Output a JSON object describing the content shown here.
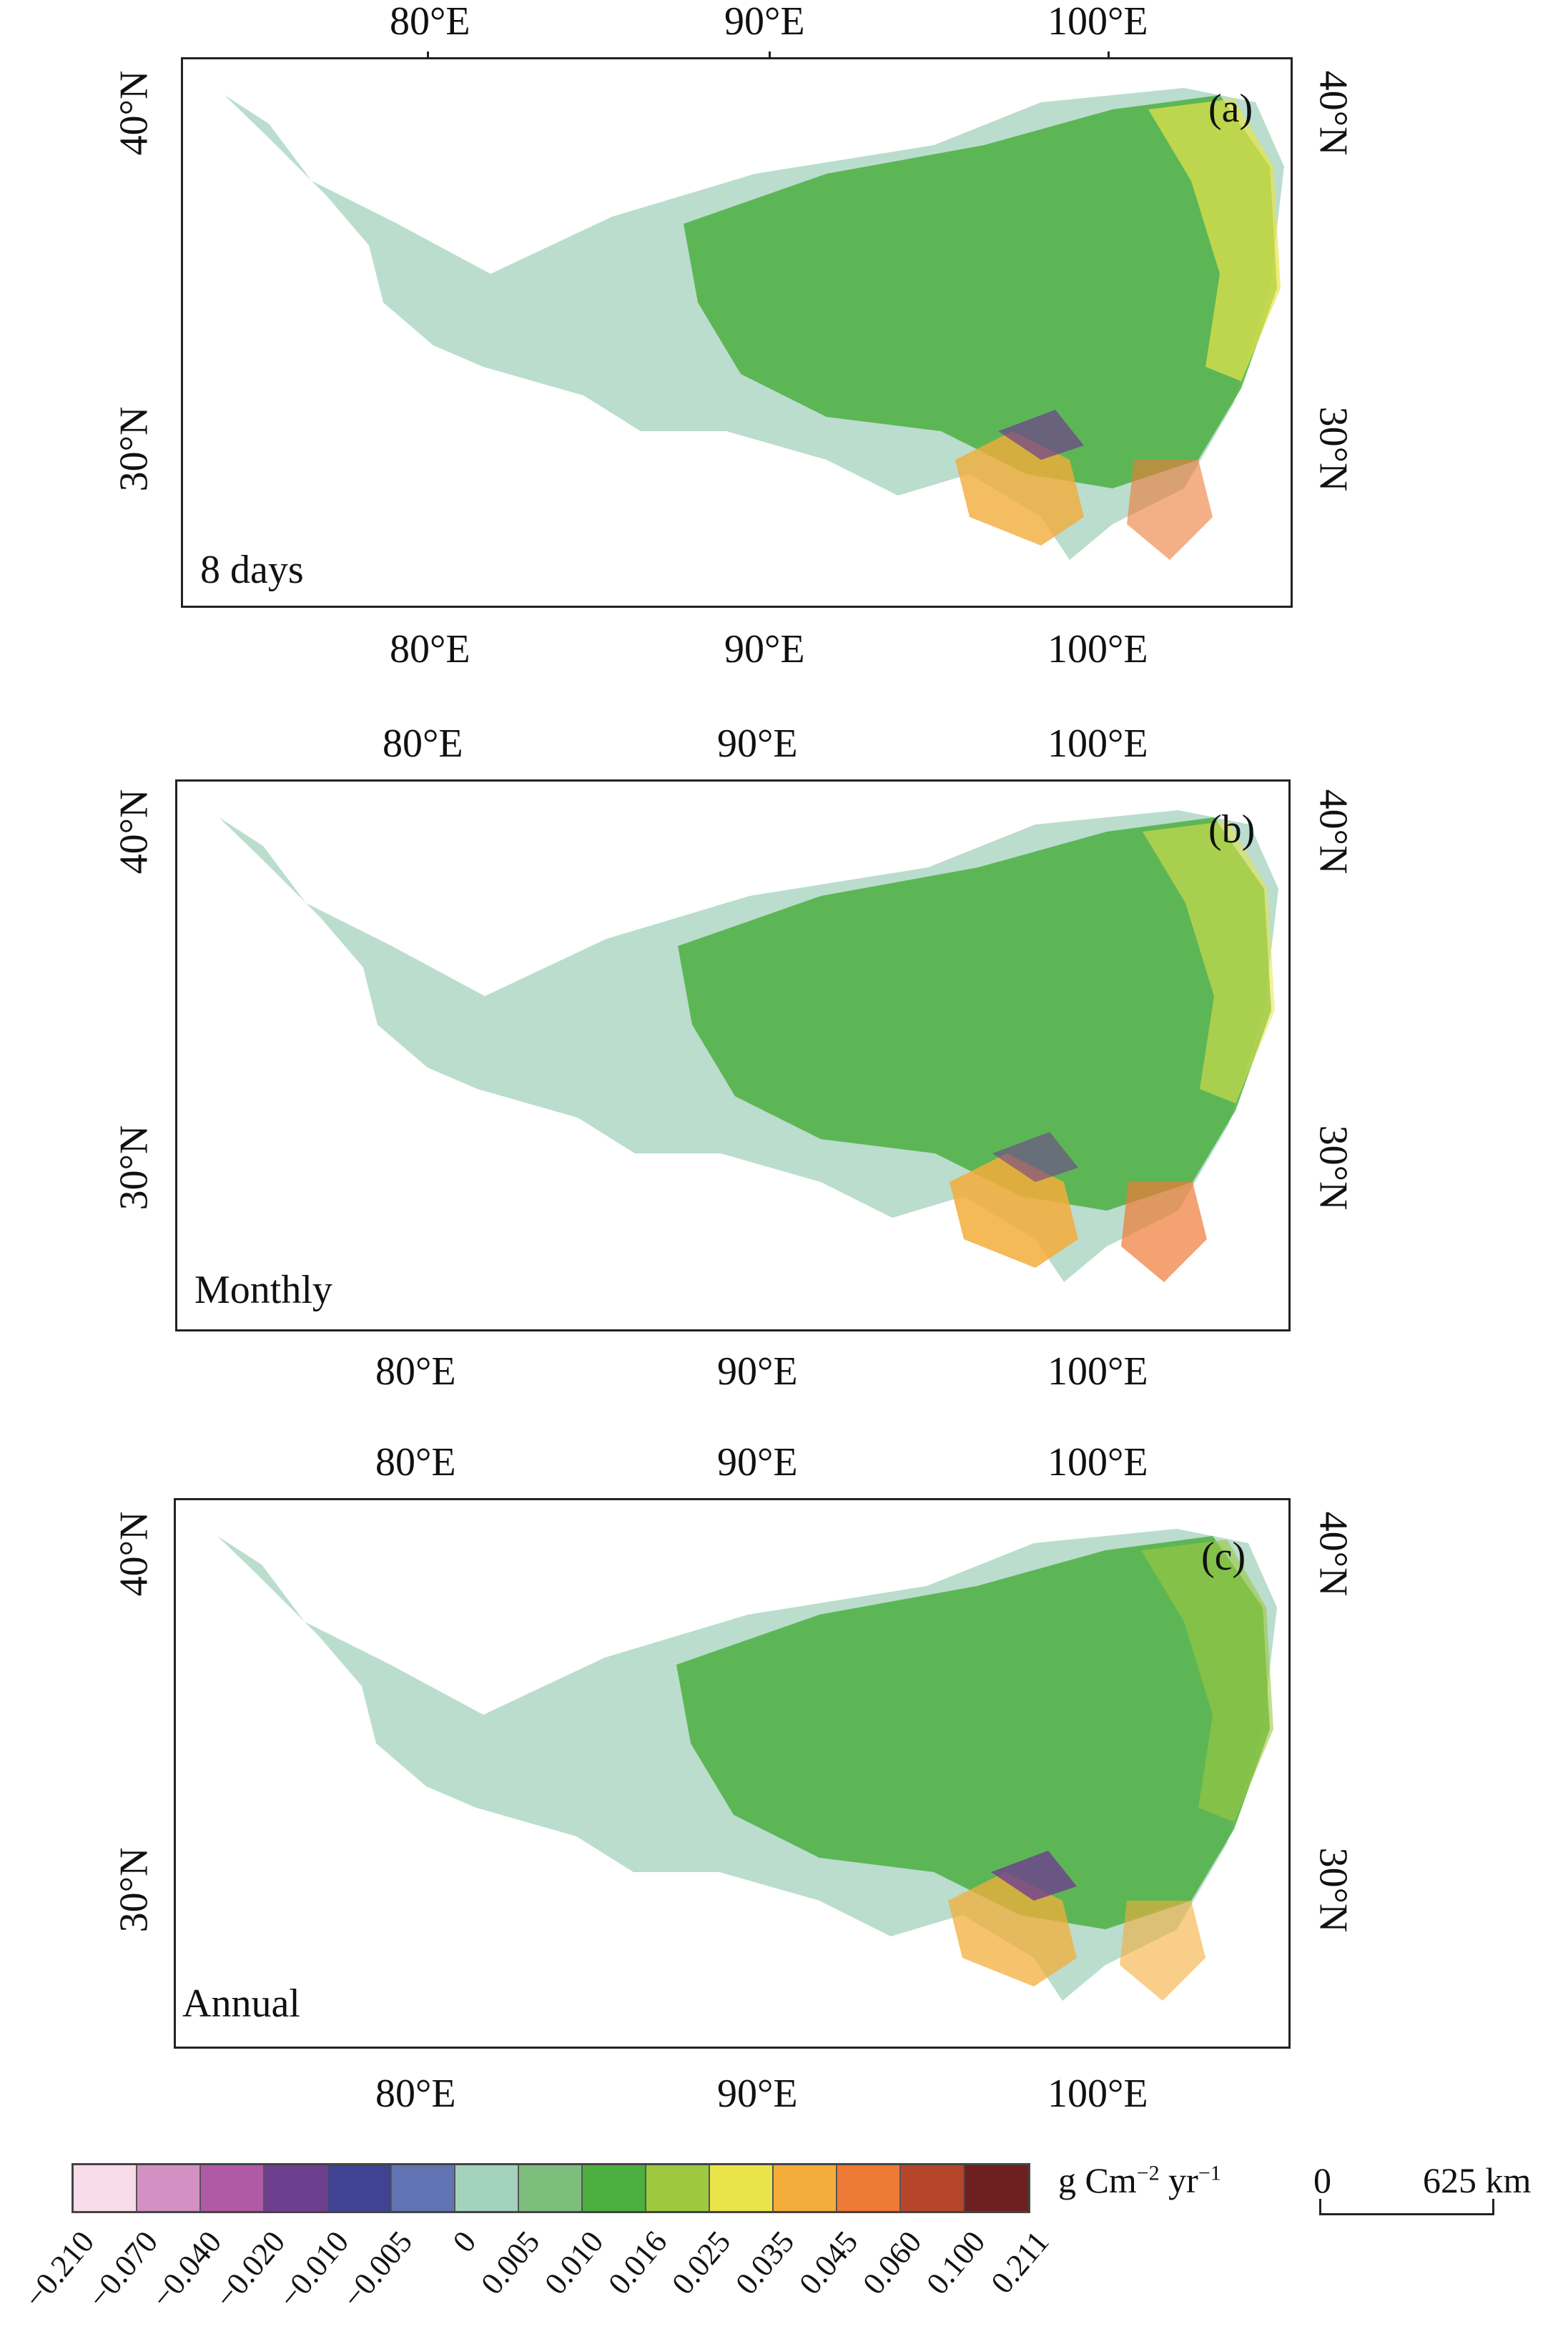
{
  "map": {
    "lon_ticks": [
      "80°E",
      "90°E",
      "100°E"
    ],
    "lat_ticks": [
      "40°N",
      "30°N"
    ],
    "panels": [
      {
        "id": "a",
        "label": "(a)",
        "period": "8 days"
      },
      {
        "id": "b",
        "label": "(b)",
        "period": "Monthly"
      },
      {
        "id": "c",
        "label": "(c)",
        "period": "Annual"
      }
    ]
  },
  "legend": {
    "unit_main": "g Cm",
    "unit_exp1": "−2",
    "unit_mid": " yr",
    "unit_exp2": "−1",
    "classes": [
      {
        "color": "#f8dcea"
      },
      {
        "color": "#d291c2"
      },
      {
        "color": "#b05aa5"
      },
      {
        "color": "#6e3f8f"
      },
      {
        "color": "#3f4391"
      },
      {
        "color": "#6173b3"
      },
      {
        "color": "#a3d2bd"
      },
      {
        "color": "#7dbe7d"
      },
      {
        "color": "#4caf3f"
      },
      {
        "color": "#9dc840"
      },
      {
        "color": "#e8e44a"
      },
      {
        "color": "#f3ad3a"
      },
      {
        "color": "#ef7a35"
      },
      {
        "color": "#b5462a"
      },
      {
        "color": "#6e1f1f"
      }
    ],
    "tick_labels": [
      "−0.210",
      "−0.070",
      "−0.040",
      "−0.020",
      "−0.010",
      "−0.005",
      "0",
      "0.005",
      "0.010",
      "0.016",
      "0.025",
      "0.035",
      "0.045",
      "0.060",
      "0.100",
      "0.211"
    ]
  },
  "scalebar": {
    "start": "0",
    "end": "625 km"
  }
}
